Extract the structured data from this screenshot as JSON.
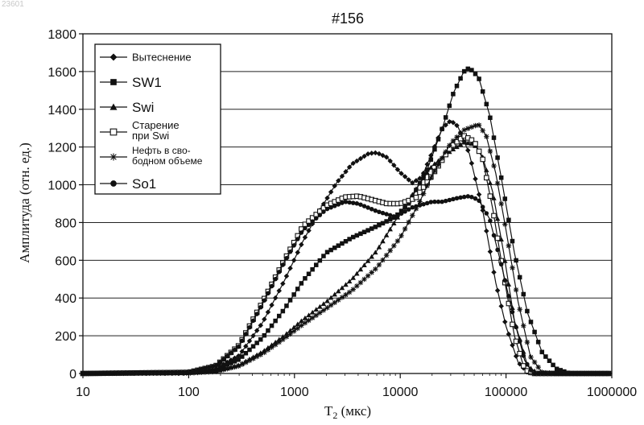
{
  "watermark": "23601",
  "chart_data": {
    "type": "line",
    "title": "#156",
    "xlabel": "T2 (мкс)",
    "xlabel_main": "T",
    "xlabel_sub": "2",
    "xlabel_rest": " (мкс)",
    "ylabel": "Амплитуда (отн. ед.)",
    "xscale": "log",
    "xlim": [
      10,
      1000000
    ],
    "ylim": [
      0,
      1800
    ],
    "xticks": [
      10,
      100,
      1000,
      10000,
      100000,
      1000000
    ],
    "xtick_labels": [
      "10",
      "100",
      "1000",
      "10000",
      "100000",
      "1000000"
    ],
    "yticks": [
      0,
      200,
      400,
      600,
      800,
      1000,
      1200,
      1400,
      1600,
      1800
    ],
    "ytick_labels": [
      "0",
      "200",
      "400",
      "600",
      "800",
      "1000",
      "1200",
      "1400",
      "1600",
      "1800"
    ],
    "grid": "horizontal",
    "legend_position": "top-left",
    "series": [
      {
        "name": "Вытеснение",
        "marker": "diamond",
        "points": [
          [
            10,
            0
          ],
          [
            100,
            5
          ],
          [
            180,
            25
          ],
          [
            300,
            95
          ],
          [
            500,
            270
          ],
          [
            800,
            490
          ],
          [
            1200,
            700
          ],
          [
            1800,
            880
          ],
          [
            2500,
            1010
          ],
          [
            3500,
            1110
          ],
          [
            5000,
            1165
          ],
          [
            6000,
            1170
          ],
          [
            7500,
            1145
          ],
          [
            10000,
            1065
          ],
          [
            13000,
            1010
          ],
          [
            16000,
            1040
          ],
          [
            20000,
            1170
          ],
          [
            25000,
            1300
          ],
          [
            30000,
            1340
          ],
          [
            35000,
            1310
          ],
          [
            45000,
            1165
          ],
          [
            60000,
            870
          ],
          [
            80000,
            480
          ],
          [
            100000,
            250
          ],
          [
            130000,
            60
          ],
          [
            160000,
            5
          ],
          [
            200000,
            0
          ],
          [
            1000000,
            0
          ]
        ]
      },
      {
        "name": "SW1",
        "marker": "square",
        "points": [
          [
            10,
            0
          ],
          [
            100,
            5
          ],
          [
            180,
            20
          ],
          [
            300,
            75
          ],
          [
            500,
            190
          ],
          [
            800,
            340
          ],
          [
            1200,
            490
          ],
          [
            2000,
            640
          ],
          [
            3500,
            720
          ],
          [
            6000,
            780
          ],
          [
            9000,
            830
          ],
          [
            12000,
            900
          ],
          [
            18000,
            1080
          ],
          [
            25000,
            1300
          ],
          [
            32000,
            1490
          ],
          [
            40000,
            1600
          ],
          [
            45000,
            1620
          ],
          [
            55000,
            1570
          ],
          [
            70000,
            1370
          ],
          [
            90000,
            1040
          ],
          [
            120000,
            640
          ],
          [
            160000,
            320
          ],
          [
            220000,
            110
          ],
          [
            300000,
            25
          ],
          [
            400000,
            0
          ],
          [
            1000000,
            0
          ]
        ]
      },
      {
        "name": "Swi",
        "marker": "triangle",
        "points": [
          [
            10,
            0
          ],
          [
            100,
            3
          ],
          [
            180,
            12
          ],
          [
            300,
            45
          ],
          [
            500,
            115
          ],
          [
            800,
            200
          ],
          [
            1200,
            285
          ],
          [
            2000,
            380
          ],
          [
            3500,
            500
          ],
          [
            6000,
            650
          ],
          [
            10000,
            850
          ],
          [
            15000,
            1000
          ],
          [
            20000,
            1100
          ],
          [
            30000,
            1180
          ],
          [
            40000,
            1225
          ],
          [
            50000,
            1215
          ],
          [
            60000,
            1150
          ],
          [
            75000,
            960
          ],
          [
            95000,
            640
          ],
          [
            120000,
            280
          ],
          [
            160000,
            40
          ],
          [
            200000,
            0
          ],
          [
            1000000,
            0
          ]
        ]
      },
      {
        "name": "Старение при Swi",
        "marker": "open-square",
        "points": [
          [
            10,
            0
          ],
          [
            100,
            6
          ],
          [
            180,
            40
          ],
          [
            300,
            150
          ],
          [
            500,
            380
          ],
          [
            800,
            600
          ],
          [
            1200,
            780
          ],
          [
            2000,
            890
          ],
          [
            3000,
            935
          ],
          [
            4000,
            940
          ],
          [
            5500,
            920
          ],
          [
            7500,
            900
          ],
          [
            10000,
            900
          ],
          [
            14000,
            930
          ],
          [
            20000,
            1050
          ],
          [
            30000,
            1200
          ],
          [
            40000,
            1260
          ],
          [
            50000,
            1230
          ],
          [
            60000,
            1140
          ],
          [
            75000,
            870
          ],
          [
            95000,
            520
          ],
          [
            120000,
            200
          ],
          [
            150000,
            20
          ],
          [
            180000,
            0
          ],
          [
            1000000,
            0
          ]
        ]
      },
      {
        "name": "Нефть в свободном объеме",
        "marker": "star",
        "points": [
          [
            10,
            0
          ],
          [
            100,
            2
          ],
          [
            180,
            10
          ],
          [
            300,
            40
          ],
          [
            500,
            105
          ],
          [
            800,
            185
          ],
          [
            1200,
            260
          ],
          [
            2000,
            345
          ],
          [
            3500,
            440
          ],
          [
            6000,
            560
          ],
          [
            10000,
            720
          ],
          [
            15000,
            900
          ],
          [
            20000,
            1050
          ],
          [
            30000,
            1220
          ],
          [
            40000,
            1290
          ],
          [
            55000,
            1320
          ],
          [
            65000,
            1260
          ],
          [
            80000,
            1060
          ],
          [
            100000,
            760
          ],
          [
            130000,
            380
          ],
          [
            170000,
            90
          ],
          [
            220000,
            5
          ],
          [
            300000,
            0
          ],
          [
            1000000,
            0
          ]
        ]
      },
      {
        "name": "So1",
        "marker": "circle",
        "points": [
          [
            10,
            0
          ],
          [
            100,
            6
          ],
          [
            180,
            40
          ],
          [
            300,
            145
          ],
          [
            500,
            370
          ],
          [
            800,
            590
          ],
          [
            1200,
            760
          ],
          [
            2000,
            870
          ],
          [
            3000,
            910
          ],
          [
            4000,
            900
          ],
          [
            6000,
            860
          ],
          [
            9000,
            830
          ],
          [
            13000,
            880
          ],
          [
            20000,
            910
          ],
          [
            25000,
            910
          ],
          [
            35000,
            930
          ],
          [
            45000,
            940
          ],
          [
            55000,
            920
          ],
          [
            70000,
            820
          ],
          [
            90000,
            580
          ],
          [
            120000,
            280
          ],
          [
            150000,
            70
          ],
          [
            180000,
            0
          ],
          [
            1000000,
            0
          ]
        ]
      }
    ],
    "legend_entries": [
      {
        "lines": [
          "Вытеснение"
        ],
        "marker": "diamond",
        "size": 13
      },
      {
        "lines": [
          "SW1"
        ],
        "marker": "square",
        "size": 17
      },
      {
        "lines": [
          "Swi"
        ],
        "marker": "triangle",
        "size": 17
      },
      {
        "lines": [
          "Старение",
          "при Swi"
        ],
        "marker": "open-square",
        "size": 13
      },
      {
        "lines": [
          "Нефть в сво-",
          "бодном объеме"
        ],
        "marker": "star",
        "size": 12
      },
      {
        "lines": [
          "So1"
        ],
        "marker": "circle",
        "size": 17
      }
    ]
  }
}
